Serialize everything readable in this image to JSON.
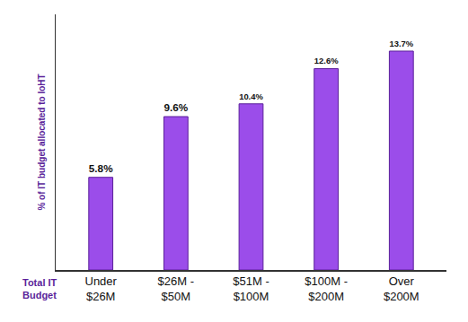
{
  "chart_data": {
    "type": "bar",
    "ylabel": "% of IT budget allocated to IoHT",
    "xlabel": "Total IT Budget",
    "categories": [
      "Under $26M",
      "$26M - $50M",
      "$51M - $100M",
      "$100M - $200M",
      "Over $200M"
    ],
    "values": [
      5.8,
      9.6,
      10.4,
      12.6,
      13.7
    ],
    "value_labels": [
      "5.8%",
      "9.6%",
      "10.4%",
      "12.6%",
      "13.7%"
    ],
    "color": "#9b4dea",
    "ylim": [
      0,
      16
    ],
    "grid": false,
    "data_labels": true,
    "tick_labels": "x"
  }
}
